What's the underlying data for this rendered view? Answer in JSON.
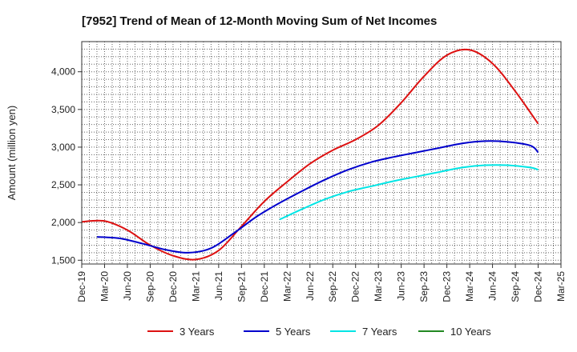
{
  "chart_data": {
    "type": "line",
    "title": "[7952]  Trend of Mean of 12-Month Moving Sum of Net Incomes",
    "xlabel": "",
    "ylabel": "Amount (million yen)",
    "ylim": [
      1450,
      4400
    ],
    "yticks": [
      1500,
      2000,
      2500,
      3000,
      3500,
      4000
    ],
    "ytick_labels": [
      "1,500",
      "2,000",
      "2,500",
      "3,000",
      "3,500",
      "4,000"
    ],
    "x_labels": [
      "Dec-19",
      "Mar-20",
      "Jun-20",
      "Sep-20",
      "Dec-20",
      "Mar-21",
      "Jun-21",
      "Sep-21",
      "Dec-21",
      "Mar-22",
      "Jun-22",
      "Sep-22",
      "Dec-22",
      "Mar-23",
      "Jun-23",
      "Sep-23",
      "Dec-23",
      "Mar-24",
      "Jun-24",
      "Sep-24",
      "Dec-24",
      "Mar-25"
    ],
    "grid": true,
    "legend_position": "bottom",
    "series": [
      {
        "name": "3 Years",
        "color": "#dd1111",
        "points": [
          [
            0,
            2010
          ],
          [
            1,
            2020
          ],
          [
            2,
            1900
          ],
          [
            3,
            1700
          ],
          [
            4,
            1560
          ],
          [
            5,
            1510
          ],
          [
            6,
            1630
          ],
          [
            7,
            1950
          ],
          [
            8,
            2280
          ],
          [
            9,
            2540
          ],
          [
            10,
            2780
          ],
          [
            11,
            2960
          ],
          [
            12,
            3100
          ],
          [
            13,
            3290
          ],
          [
            14,
            3590
          ],
          [
            15,
            3940
          ],
          [
            16,
            4220
          ],
          [
            17,
            4290
          ],
          [
            18,
            4110
          ],
          [
            19,
            3740
          ],
          [
            20,
            3310
          ]
        ]
      },
      {
        "name": "5 Years",
        "color": "#0000cc",
        "points": [
          [
            0.67,
            1810
          ],
          [
            1.67,
            1790
          ],
          [
            2.67,
            1720
          ],
          [
            3.67,
            1640
          ],
          [
            4.67,
            1600
          ],
          [
            5.67,
            1660
          ],
          [
            6.67,
            1860
          ],
          [
            7.67,
            2080
          ],
          [
            8.67,
            2260
          ],
          [
            9.67,
            2420
          ],
          [
            10.67,
            2570
          ],
          [
            11.67,
            2700
          ],
          [
            12.67,
            2800
          ],
          [
            13.67,
            2870
          ],
          [
            14.67,
            2930
          ],
          [
            15.67,
            2990
          ],
          [
            16.67,
            3050
          ],
          [
            17.67,
            3080
          ],
          [
            18.67,
            3070
          ],
          [
            19.67,
            3020
          ],
          [
            20,
            2930
          ]
        ]
      },
      {
        "name": "7 Years",
        "color": "#00e5e5",
        "points": [
          [
            8.67,
            2040
          ],
          [
            9.67,
            2180
          ],
          [
            10.67,
            2310
          ],
          [
            11.67,
            2410
          ],
          [
            12.67,
            2480
          ],
          [
            13.67,
            2550
          ],
          [
            14.67,
            2610
          ],
          [
            15.67,
            2670
          ],
          [
            16.67,
            2730
          ],
          [
            17.67,
            2760
          ],
          [
            18.67,
            2760
          ],
          [
            19.67,
            2730
          ],
          [
            20,
            2700
          ]
        ]
      },
      {
        "name": "10 Years",
        "color": "#228822",
        "points": []
      }
    ]
  }
}
